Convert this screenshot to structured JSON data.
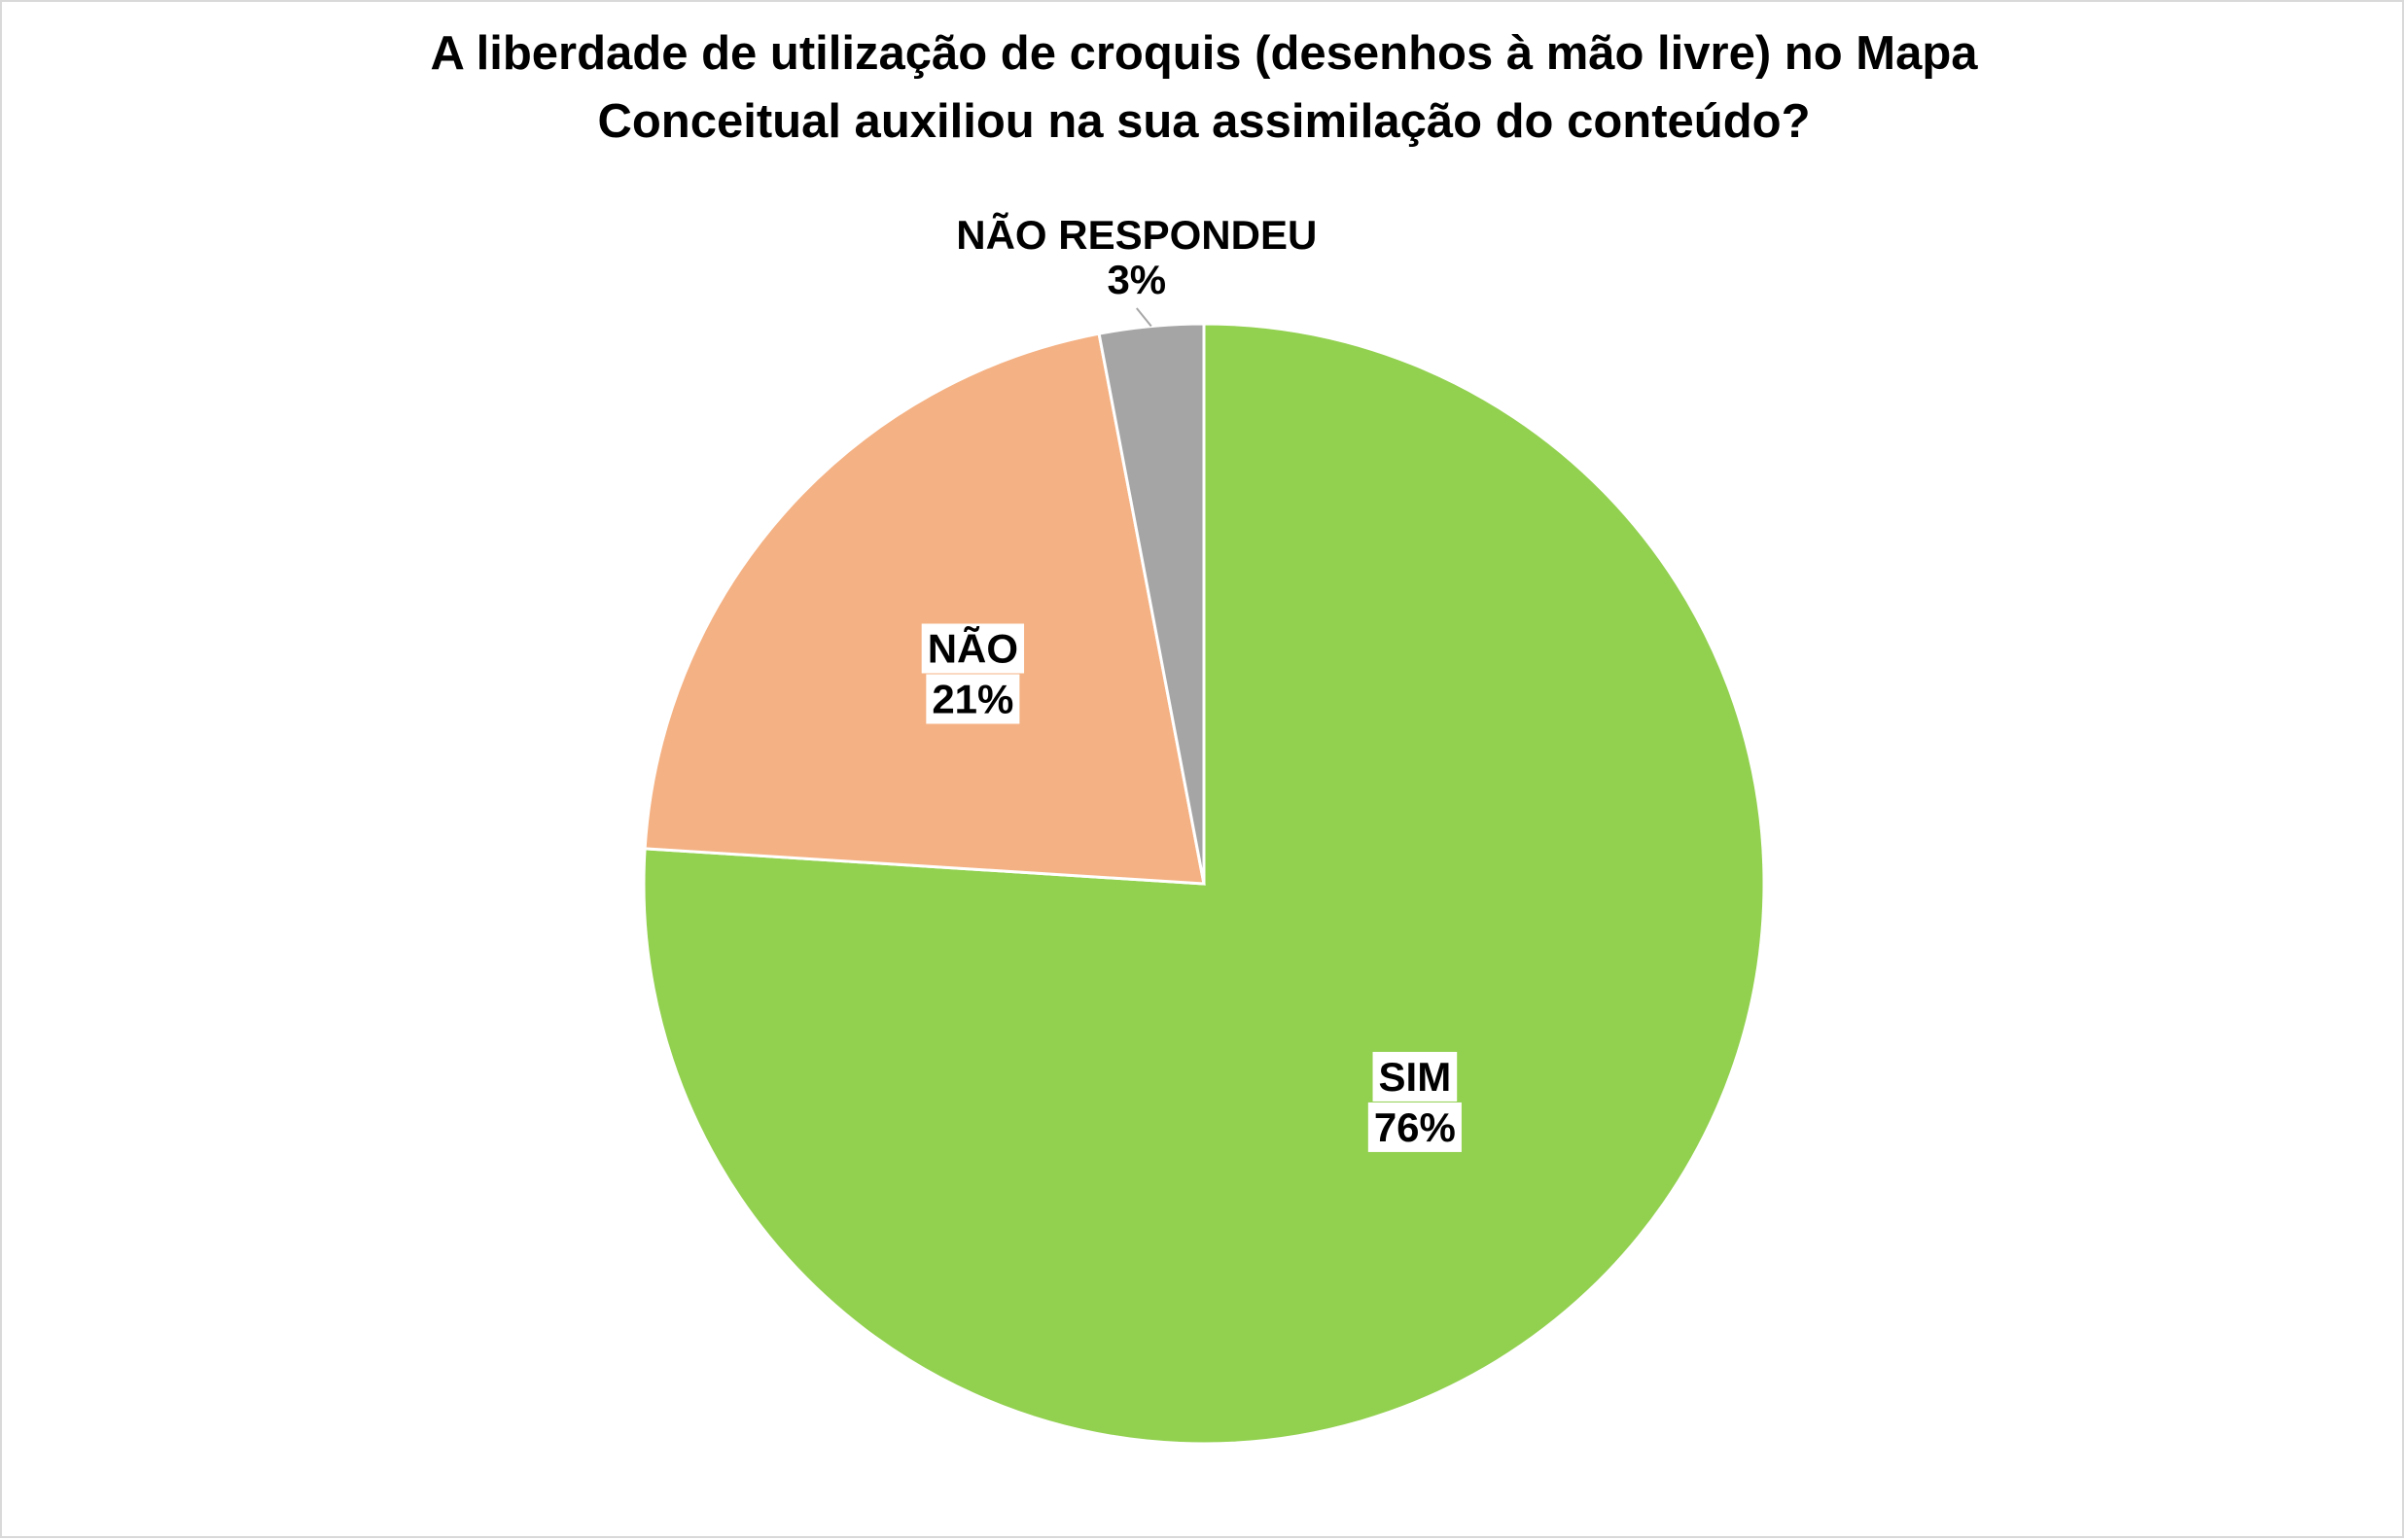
{
  "chart_data": {
    "type": "pie",
    "title_lines": [
      "A liberdade de utilização de croquis (desenhos à mão livre) no Mapa",
      "Conceitual auxiliou na sua assimilação do conteúdo?"
    ],
    "slices": [
      {
        "label": "SIM",
        "value": 76,
        "display": "76%",
        "color": "#92d050"
      },
      {
        "label": "NÃO",
        "value": 21,
        "display": "21%",
        "color": "#f4b183"
      },
      {
        "label": "NÃO RESPONDEU",
        "value": 3,
        "display": "3%",
        "color": "#a5a5a5"
      }
    ],
    "start_angle_deg": 0,
    "direction": "clockwise",
    "slice_border_color": "#ffffff",
    "legend": "none",
    "data_labels": "category and percentage"
  }
}
